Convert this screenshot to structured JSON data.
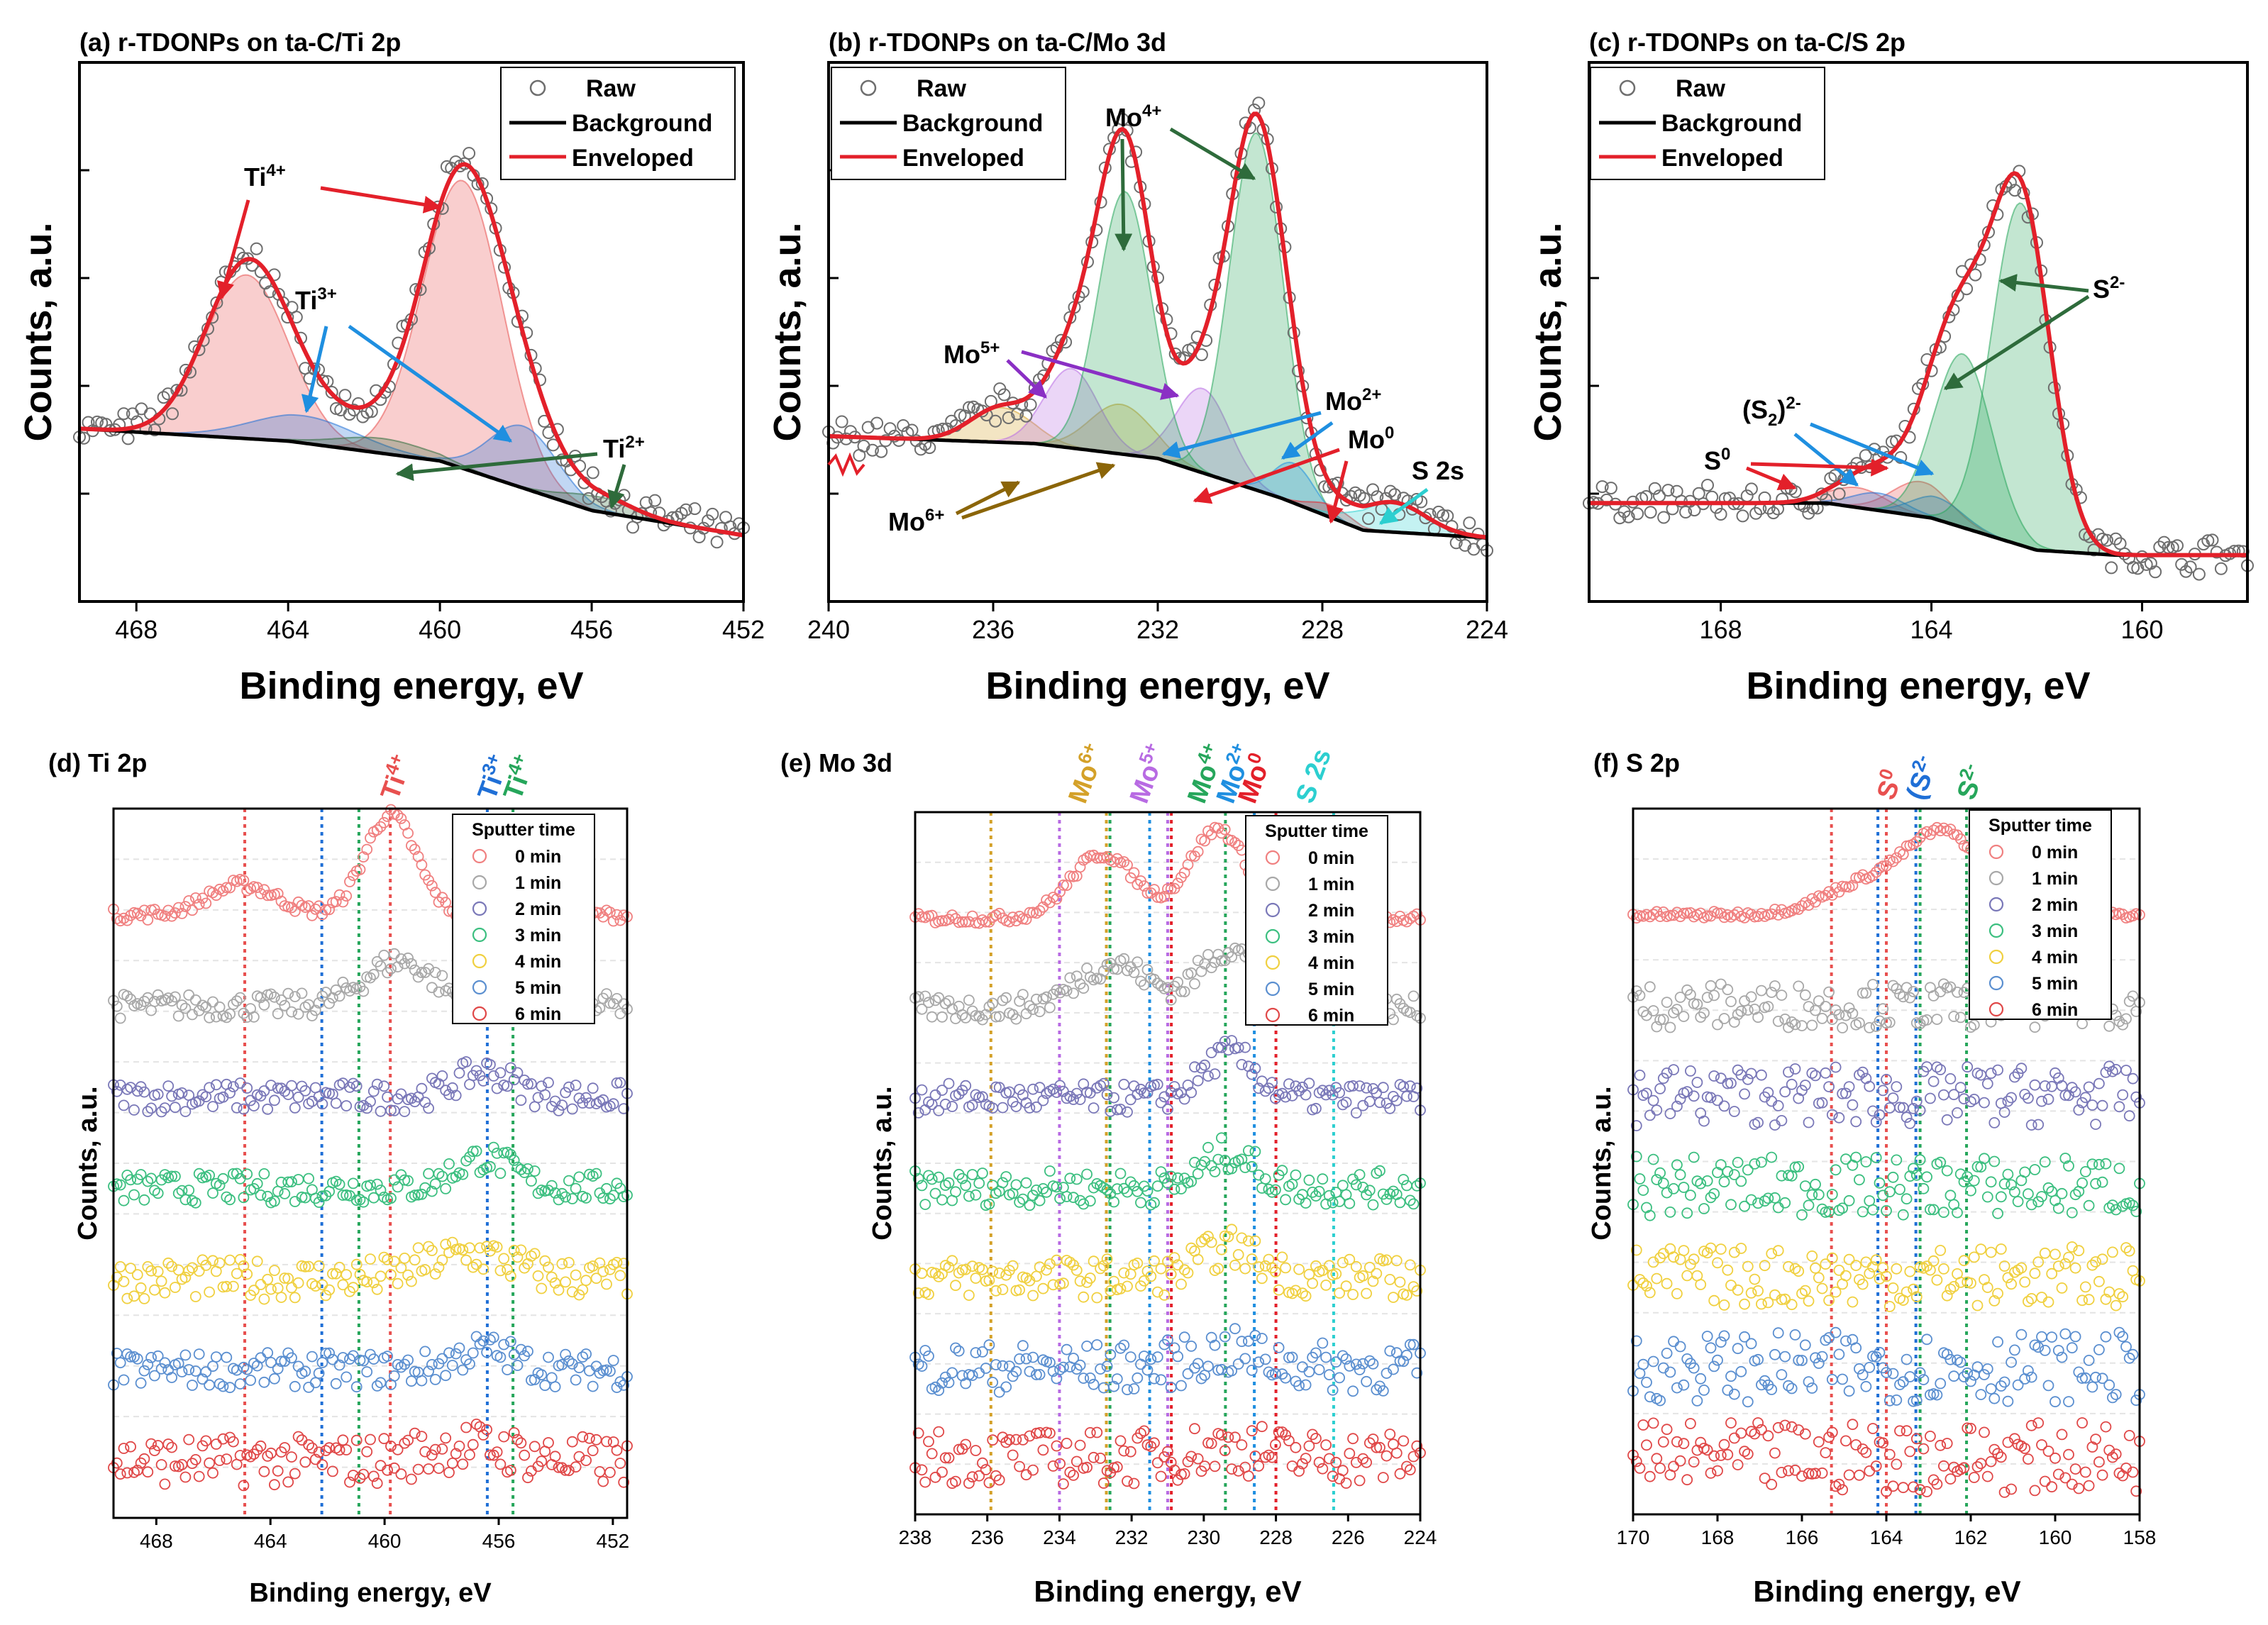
{
  "colors": {
    "raw": "#6e6e6e",
    "background": "#000000",
    "envelope": "#e3202a",
    "ti4": "#e8504f",
    "ti3": "#1f6fd6",
    "ti2": "#2e6b3b",
    "mo6": "#d4a129",
    "mo5": "#b86be3",
    "mo4": "#26a65b",
    "mo2": "#1f8fe0",
    "mo0": "#e3202a",
    "s2s": "#2ccfd0",
    "s0": "#e8504f",
    "s2dim": "#1f6fd6",
    "s2m": "#26a65b",
    "arrow_purple": "#8a2fc4",
    "arrow_brown": "#8b6508",
    "arrow_dgreen": "#2e6b3b",
    "time0": "#f08080",
    "time1": "#a8a8a8",
    "time2": "#7a78b8",
    "time3": "#3cbf80",
    "time4": "#f0d040",
    "time5": "#5b8fd0",
    "time6": "#e04848"
  },
  "legend_top": {
    "raw": "Raw",
    "background": "Background",
    "envelope": "Enveloped"
  },
  "legend_sputter": {
    "title": "Sputter time",
    "items": [
      "0 min",
      "1 min",
      "2 min",
      "3 min",
      "4 min",
      "5 min",
      "6 min"
    ]
  },
  "chart_data": [
    {
      "id": "a",
      "type": "scatter",
      "title": "(a) r-TDONPs on ta-C/Ti 2p",
      "xlabel": "Binding energy, eV",
      "ylabel": "Counts, a.u.",
      "xlim": [
        469.5,
        452
      ],
      "ylim": [
        0,
        10
      ],
      "xticks": [
        468,
        464,
        460,
        456,
        452
      ],
      "background_line": [
        [
          469.5,
          3.05
        ],
        [
          464,
          2.8
        ],
        [
          460,
          2.4
        ],
        [
          456,
          1.4
        ],
        [
          452,
          0.9
        ]
      ],
      "components": [
        {
          "name": "Ti4+",
          "center": 465.1,
          "amp": 3.3,
          "width": 1.1,
          "color_key": "ti4"
        },
        {
          "name": "Ti4+",
          "center": 459.4,
          "amp": 5.8,
          "width": 1.05,
          "color_key": "ti4"
        },
        {
          "name": "Ti3+",
          "center": 463.6,
          "amp": 0.55,
          "width": 1.4,
          "color_key": "ti3"
        },
        {
          "name": "Ti3+",
          "center": 457.8,
          "amp": 1.25,
          "width": 0.9,
          "color_key": "ti3"
        },
        {
          "name": "Ti2+",
          "center": 461.5,
          "amp": 0.3,
          "width": 1.2,
          "color_key": "ti2"
        },
        {
          "name": "Ti2+",
          "center": 455.8,
          "amp": 0.3,
          "width": 0.9,
          "color_key": "ti2"
        }
      ],
      "annotations": [
        {
          "base": "Ti",
          "sup": "4+",
          "color_key": "ti4"
        },
        {
          "base": "Ti",
          "sup": "3+",
          "color_key": "ti3"
        },
        {
          "base": "Ti",
          "sup": "2+",
          "color_key": "ti2"
        }
      ]
    },
    {
      "id": "b",
      "type": "scatter",
      "title": "(b) r-TDONPs on ta-C/Mo 3d",
      "xlabel": "Binding energy, eV",
      "ylabel": "Counts, a.u.",
      "xlim": [
        240,
        224
      ],
      "ylim": [
        0,
        10
      ],
      "xticks": [
        240,
        236,
        232,
        228,
        224
      ],
      "background_line": [
        [
          240,
          2.9
        ],
        [
          235,
          2.75
        ],
        [
          232,
          2.45
        ],
        [
          229,
          1.65
        ],
        [
          227,
          1.0
        ],
        [
          224,
          0.85
        ]
      ],
      "components": [
        {
          "name": "Mo6+",
          "center": 235.8,
          "amp": 0.7,
          "width": 0.75,
          "color_key": "mo6"
        },
        {
          "name": "Mo6+",
          "center": 232.9,
          "amp": 1.0,
          "width": 0.75,
          "color_key": "mo6"
        },
        {
          "name": "Mo5+",
          "center": 234.1,
          "amp": 1.6,
          "width": 0.65,
          "color_key": "mo5"
        },
        {
          "name": "Mo5+",
          "center": 230.9,
          "amp": 1.7,
          "width": 0.65,
          "color_key": "mo5"
        },
        {
          "name": "Mo4+",
          "center": 232.8,
          "amp": 5.3,
          "width": 0.65,
          "color_key": "mo4"
        },
        {
          "name": "Mo4+",
          "center": 229.6,
          "amp": 7.2,
          "width": 0.65,
          "color_key": "mo4"
        },
        {
          "name": "Mo2+",
          "center": 228.7,
          "amp": 0.8,
          "width": 0.5,
          "color_key": "mo2"
        },
        {
          "name": "Mo0",
          "center": 227.8,
          "amp": 0.25,
          "width": 0.5,
          "color_key": "mo0"
        },
        {
          "name": "S 2s",
          "center": 226.3,
          "amp": 0.6,
          "width": 0.8,
          "color_key": "s2s"
        }
      ],
      "annotations": [
        {
          "base": "Mo",
          "sup": "4+",
          "color_key": "mo4"
        },
        {
          "base": "Mo",
          "sup": "5+",
          "color_key": "mo5"
        },
        {
          "base": "Mo",
          "sup": "2+",
          "color_key": "mo2"
        },
        {
          "base": "Mo",
          "sup": "0",
          "color_key": "mo0"
        },
        {
          "base": "S 2s",
          "sup": "",
          "color_key": "s2s"
        },
        {
          "base": "Mo",
          "sup": "6+",
          "color_key": "mo6"
        }
      ]
    },
    {
      "id": "c",
      "type": "scatter",
      "title": "(c) r-TDONPs on ta-C/S 2p",
      "xlabel": "Binding energy, eV",
      "ylabel": "Counts, a.u.",
      "xlim": [
        170.5,
        158
      ],
      "ylim": [
        0,
        10
      ],
      "xticks": [
        168,
        164,
        160
      ],
      "background_line": [
        [
          170.5,
          1.55
        ],
        [
          166,
          1.55
        ],
        [
          164,
          1.25
        ],
        [
          162,
          0.6
        ],
        [
          160.5,
          0.5
        ],
        [
          158,
          0.5
        ]
      ],
      "components": [
        {
          "name": "S0",
          "center": 165.4,
          "amp": 0.4,
          "width": 0.55,
          "color_key": "s0"
        },
        {
          "name": "S0",
          "center": 164.2,
          "amp": 0.7,
          "width": 0.55,
          "color_key": "s0"
        },
        {
          "name": "(S2)2-",
          "center": 165.0,
          "amp": 0.35,
          "width": 0.5,
          "color_key": "s2dim"
        },
        {
          "name": "(S2)2-",
          "center": 163.9,
          "amp": 0.45,
          "width": 0.5,
          "color_key": "s2dim"
        },
        {
          "name": "S2-",
          "center": 163.4,
          "amp": 3.5,
          "width": 0.55,
          "color_key": "s2m"
        },
        {
          "name": "S2-",
          "center": 162.3,
          "amp": 6.9,
          "width": 0.55,
          "color_key": "s2m"
        }
      ],
      "annotations": [
        {
          "base": "S",
          "sup": "2-",
          "color_key": "s2m"
        },
        {
          "base": "(S",
          "sub": "2",
          "sup2": ")",
          "sup": "2-",
          "color_key": "s2dim"
        },
        {
          "base": "S",
          "sup": "0",
          "color_key": "s0"
        }
      ]
    },
    {
      "id": "d",
      "type": "scatter",
      "title": "(d) Ti 2p",
      "xlabel": "Binding energy, eV",
      "ylabel": "Counts, a.u.",
      "xlim": [
        469.5,
        451.5
      ],
      "xticks": [
        468,
        464,
        460,
        456,
        452
      ],
      "reference_lines": [
        {
          "label": "Ti",
          "sup": "4+",
          "energy": 464.9,
          "color_key": "ti4"
        },
        {
          "label": "Ti",
          "sup": "4+",
          "energy": 459.8,
          "color_key": "ti4"
        },
        {
          "label": "Ti",
          "sup": "3+",
          "energy": 462.2,
          "color_key": "ti3"
        },
        {
          "label": "Ti",
          "sup": "3+",
          "energy": 456.4,
          "color_key": "ti3"
        },
        {
          "label": "Ti",
          "sup": "4+",
          "energy": 460.9,
          "color_key": "mo4"
        },
        {
          "label": "Ti",
          "sup": "4+",
          "energy": 455.5,
          "color_key": "mo4"
        }
      ],
      "series_peaks": [
        [
          [
            465.0,
            0.6,
            1.2
          ],
          [
            459.8,
            2.0,
            0.9
          ]
        ],
        [
          [
            459.5,
            0.9,
            1.2
          ]
        ],
        [
          [
            456.5,
            0.5,
            1.0
          ]
        ],
        [
          [
            456.5,
            0.6,
            1.0
          ]
        ],
        [
          [
            457,
            0.5,
            1.5
          ]
        ],
        [
          [
            456.5,
            0.4,
            1.0
          ]
        ],
        [
          [
            457,
            0.3,
            1.5
          ]
        ]
      ],
      "series_noise": [
        0.12,
        0.25,
        0.3,
        0.3,
        0.4,
        0.35,
        0.5
      ]
    },
    {
      "id": "e",
      "type": "scatter",
      "title": "(e) Mo 3d",
      "xlabel": "Binding energy, eV",
      "ylabel": "Counts, a.u.",
      "xlim": [
        238,
        224
      ],
      "xticks": [
        238,
        236,
        234,
        232,
        230,
        228,
        226,
        224
      ],
      "reference_lines": [
        {
          "label": "Mo",
          "sup": "6+",
          "energy": 235.9,
          "color_key": "mo6"
        },
        {
          "label": "Mo",
          "sup": "6+",
          "energy": 232.7,
          "color_key": "mo6"
        },
        {
          "label": "Mo",
          "sup": "5+",
          "energy": 234.0,
          "color_key": "mo5"
        },
        {
          "label": "Mo",
          "sup": "5+",
          "energy": 231.0,
          "color_key": "mo5"
        },
        {
          "label": "Mo",
          "sup": "4+",
          "energy": 232.6,
          "color_key": "mo4"
        },
        {
          "label": "Mo",
          "sup": "4+",
          "energy": 229.4,
          "color_key": "mo4"
        },
        {
          "label": "Mo",
          "sup": "2+",
          "energy": 231.5,
          "color_key": "mo2"
        },
        {
          "label": "Mo",
          "sup": "2+",
          "energy": 228.6,
          "color_key": "mo2"
        },
        {
          "label": "Mo",
          "sup": "0",
          "energy": 230.9,
          "color_key": "mo0"
        },
        {
          "label": "Mo",
          "sup": "0",
          "energy": 228.0,
          "color_key": "mo0"
        },
        {
          "label": "S 2s",
          "sup": "",
          "energy": 226.4,
          "color_key": "s2s"
        }
      ],
      "series_peaks": [
        [
          [
            232.8,
            1.3,
            0.9
          ],
          [
            229.6,
            1.8,
            0.8
          ]
        ],
        [
          [
            232.5,
            0.9,
            1.0
          ],
          [
            229.3,
            1.2,
            0.8
          ]
        ],
        [
          [
            229.3,
            0.9,
            0.7
          ]
        ],
        [
          [
            229.3,
            0.7,
            0.7
          ]
        ],
        [
          [
            229.3,
            0.6,
            0.8
          ]
        ],
        [
          [
            229.3,
            0.3,
            1.0
          ]
        ],
        [
          [
            229.3,
            0.2,
            1.0
          ]
        ]
      ],
      "series_noise": [
        0.1,
        0.25,
        0.3,
        0.35,
        0.4,
        0.5,
        0.55
      ]
    },
    {
      "id": "f",
      "type": "scatter",
      "title": "(f) S 2p",
      "xlabel": "Binding energy, eV",
      "ylabel": "Counts, a.u.",
      "xlim": [
        170,
        158
      ],
      "xticks": [
        170,
        168,
        166,
        164,
        162,
        160,
        158
      ],
      "reference_lines": [
        {
          "label": "S",
          "sup": "0",
          "energy": 165.3,
          "color_key": "s0"
        },
        {
          "label": "S",
          "sup": "0",
          "energy": 164.0,
          "color_key": "s0"
        },
        {
          "label": "(S",
          "sup": "2-",
          "energy": 164.2,
          "color_key": "s2dim"
        },
        {
          "label": "(S",
          "sup": "2-",
          "energy": 163.3,
          "color_key": "s2dim"
        },
        {
          "label": "S",
          "sup": "2-",
          "energy": 163.2,
          "color_key": "s2m"
        },
        {
          "label": "S",
          "sup": "2-",
          "energy": 162.1,
          "color_key": "s2m"
        }
      ],
      "series_peaks": [
        [
          [
            162.6,
            1.6,
            0.9
          ],
          [
            164.5,
            0.6,
            1.0
          ]
        ],
        [],
        [],
        [],
        [],
        [],
        []
      ],
      "series_noise": [
        0.07,
        0.45,
        0.6,
        0.6,
        0.6,
        0.7,
        0.7
      ]
    }
  ]
}
